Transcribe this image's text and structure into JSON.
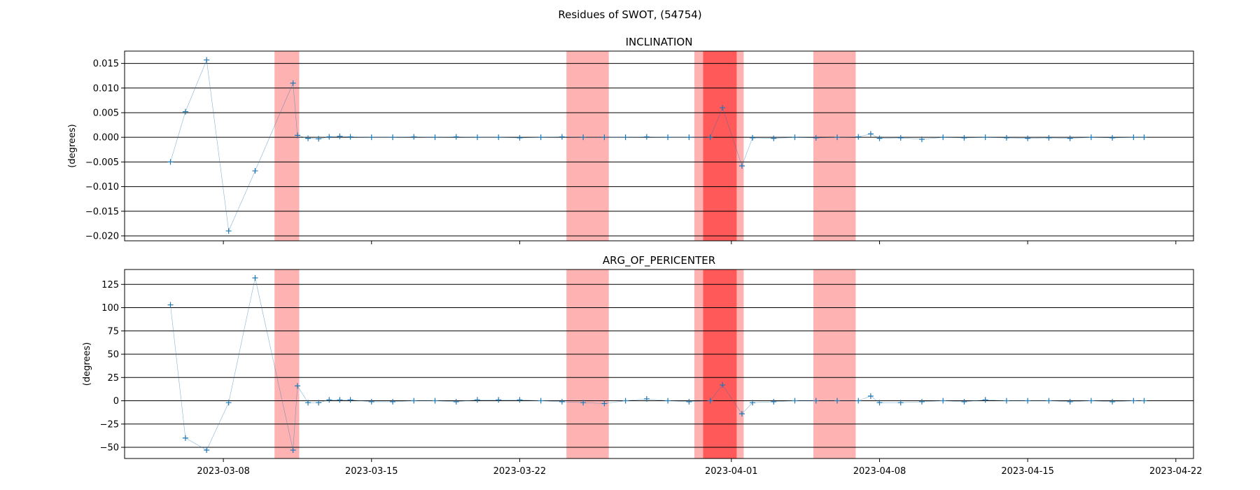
{
  "figure": {
    "title": "Residues of SWOT, (54754)"
  },
  "chart_data": [
    {
      "type": "line",
      "title": "INCLINATION",
      "xlabel": "",
      "ylabel": "(degrees)",
      "xlim": [
        "2023-03-03T08:00",
        "2023-04-22T20:00"
      ],
      "ylim": [
        -0.021,
        0.0175
      ],
      "yticks": [
        0.015,
        0.01,
        0.005,
        0.0,
        -0.005,
        -0.01,
        -0.015,
        -0.02
      ],
      "ytick_labels": [
        "0.015",
        "0.010",
        "0.005",
        "0.000",
        "−0.005",
        "−0.010",
        "−0.015",
        "−0.020"
      ],
      "xticks": [
        "2023-03-08",
        "2023-03-15",
        "2023-03-22",
        "2023-04-01",
        "2023-04-08",
        "2023-04-15",
        "2023-04-22"
      ],
      "grid": "horizontal",
      "marker": "+",
      "color": "#1f77b4",
      "series": [
        {
          "points": [
            [
              "2023-03-05T12:00",
              -0.005
            ],
            [
              "2023-03-06T05:00",
              0.0052
            ],
            [
              "2023-03-07T05:00",
              0.0157
            ],
            [
              "2023-03-08T06:00",
              -0.019
            ],
            [
              "2023-03-09T12:00",
              -0.0068
            ],
            [
              "2023-03-11T07:00",
              0.011
            ],
            [
              "2023-03-11T12:00",
              0.0004
            ],
            [
              "2023-03-12T00:00",
              -0.0002
            ],
            [
              "2023-03-12T12:00",
              -0.0003
            ],
            [
              "2023-03-13T00:00",
              0.0001
            ],
            [
              "2023-03-13T12:00",
              0.0002
            ],
            [
              "2023-03-14T00:00",
              0.0001
            ],
            [
              "2023-03-15T00:00",
              0.0
            ],
            [
              "2023-03-16T00:00",
              0.0
            ],
            [
              "2023-03-17T00:00",
              0.0001
            ],
            [
              "2023-03-18T00:00",
              0.0
            ],
            [
              "2023-03-19T00:00",
              0.0001
            ],
            [
              "2023-03-20T00:00",
              0.0
            ],
            [
              "2023-03-21T00:00",
              0.0
            ],
            [
              "2023-03-22T00:00",
              -0.0001
            ],
            [
              "2023-03-23T00:00",
              0.0
            ],
            [
              "2023-03-24T00:00",
              0.0001
            ],
            [
              "2023-03-25T00:00",
              0.0
            ],
            [
              "2023-03-26T00:00",
              0.0
            ],
            [
              "2023-03-27T00:00",
              0.0
            ],
            [
              "2023-03-28T00:00",
              0.0001
            ],
            [
              "2023-03-29T00:00",
              0.0
            ],
            [
              "2023-03-30T00:00",
              0.0
            ],
            [
              "2023-03-31T00:00",
              0.0
            ],
            [
              "2023-03-31T14:00",
              0.006
            ],
            [
              "2023-04-01T12:00",
              -0.0058
            ],
            [
              "2023-04-02T00:00",
              -0.0001
            ],
            [
              "2023-04-03T00:00",
              -0.0002
            ],
            [
              "2023-04-04T00:00",
              0.0
            ],
            [
              "2023-04-05T00:00",
              -0.0001
            ],
            [
              "2023-04-06T00:00",
              0.0
            ],
            [
              "2023-04-07T00:00",
              0.0001
            ],
            [
              "2023-04-07T14:00",
              0.0007
            ],
            [
              "2023-04-08T00:00",
              -0.0002
            ],
            [
              "2023-04-09T00:00",
              -0.0001
            ],
            [
              "2023-04-10T00:00",
              -0.0004
            ],
            [
              "2023-04-11T00:00",
              0.0
            ],
            [
              "2023-04-12T00:00",
              -0.0001
            ],
            [
              "2023-04-13T00:00",
              0.0
            ],
            [
              "2023-04-14T00:00",
              -0.0001
            ],
            [
              "2023-04-15T00:00",
              -0.0002
            ],
            [
              "2023-04-16T00:00",
              -0.0001
            ],
            [
              "2023-04-17T00:00",
              -0.0002
            ],
            [
              "2023-04-18T00:00",
              0.0
            ],
            [
              "2023-04-19T00:00",
              -0.0001
            ],
            [
              "2023-04-20T00:00",
              0.0
            ],
            [
              "2023-04-20T12:00",
              0.0
            ]
          ]
        }
      ],
      "highlighted_ranges": [
        {
          "start": "2023-03-10T10:00",
          "end": "2023-03-11T14:00",
          "shade": "light"
        },
        {
          "start": "2023-03-24T05:00",
          "end": "2023-03-26T05:00",
          "shade": "light"
        },
        {
          "start": "2023-03-30T06:00",
          "end": "2023-04-01T14:00",
          "shade": "light"
        },
        {
          "start": "2023-03-30T16:00",
          "end": "2023-04-01T06:00",
          "shade": "dark"
        },
        {
          "start": "2023-04-04T21:00",
          "end": "2023-04-06T21:00",
          "shade": "light"
        }
      ]
    },
    {
      "type": "line",
      "title": "ARG_OF_PERICENTER",
      "xlabel": "",
      "ylabel": "(degrees)",
      "xlim": [
        "2023-03-03T08:00",
        "2023-04-22T20:00"
      ],
      "ylim": [
        -62,
        141
      ],
      "yticks": [
        125,
        100,
        75,
        50,
        25,
        0,
        -25,
        -50
      ],
      "ytick_labels": [
        "125",
        "100",
        "75",
        "50",
        "25",
        "0",
        "−25",
        "−50"
      ],
      "xticks": [
        "2023-03-08",
        "2023-03-15",
        "2023-03-22",
        "2023-04-01",
        "2023-04-08",
        "2023-04-15",
        "2023-04-22"
      ],
      "grid": "horizontal",
      "marker": "+",
      "color": "#1f77b4",
      "series": [
        {
          "points": [
            [
              "2023-03-05T12:00",
              103
            ],
            [
              "2023-03-06T05:00",
              -40
            ],
            [
              "2023-03-07T05:00",
              -53
            ],
            [
              "2023-03-08T06:00",
              -2
            ],
            [
              "2023-03-09T12:00",
              132
            ],
            [
              "2023-03-11T07:00",
              -53
            ],
            [
              "2023-03-11T12:00",
              16
            ],
            [
              "2023-03-12T00:00",
              -2
            ],
            [
              "2023-03-12T12:00",
              -2
            ],
            [
              "2023-03-13T00:00",
              1
            ],
            [
              "2023-03-13T12:00",
              1
            ],
            [
              "2023-03-14T00:00",
              1
            ],
            [
              "2023-03-15T00:00",
              -1
            ],
            [
              "2023-03-16T00:00",
              -1
            ],
            [
              "2023-03-17T00:00",
              0
            ],
            [
              "2023-03-18T00:00",
              0
            ],
            [
              "2023-03-19T00:00",
              -1
            ],
            [
              "2023-03-20T00:00",
              1
            ],
            [
              "2023-03-21T00:00",
              1
            ],
            [
              "2023-03-22T00:00",
              1
            ],
            [
              "2023-03-23T00:00",
              0
            ],
            [
              "2023-03-24T00:00",
              -1
            ],
            [
              "2023-03-25T00:00",
              -2
            ],
            [
              "2023-03-26T00:00",
              -3
            ],
            [
              "2023-03-27T00:00",
              0
            ],
            [
              "2023-03-28T00:00",
              2
            ],
            [
              "2023-03-29T00:00",
              0
            ],
            [
              "2023-03-30T00:00",
              -1
            ],
            [
              "2023-03-31T00:00",
              0
            ],
            [
              "2023-03-31T14:00",
              17
            ],
            [
              "2023-04-01T12:00",
              -14
            ],
            [
              "2023-04-02T00:00",
              -2
            ],
            [
              "2023-04-03T00:00",
              -1
            ],
            [
              "2023-04-04T00:00",
              0
            ],
            [
              "2023-04-05T00:00",
              0
            ],
            [
              "2023-04-06T00:00",
              0
            ],
            [
              "2023-04-07T00:00",
              0
            ],
            [
              "2023-04-07T14:00",
              5
            ],
            [
              "2023-04-08T00:00",
              -2
            ],
            [
              "2023-04-09T00:00",
              -2
            ],
            [
              "2023-04-10T00:00",
              -1
            ],
            [
              "2023-04-11T00:00",
              0
            ],
            [
              "2023-04-12T00:00",
              -1
            ],
            [
              "2023-04-13T00:00",
              1
            ],
            [
              "2023-04-14T00:00",
              0
            ],
            [
              "2023-04-15T00:00",
              0
            ],
            [
              "2023-04-16T00:00",
              0
            ],
            [
              "2023-04-17T00:00",
              -1
            ],
            [
              "2023-04-18T00:00",
              0
            ],
            [
              "2023-04-19T00:00",
              -1
            ],
            [
              "2023-04-20T00:00",
              0
            ],
            [
              "2023-04-20T12:00",
              0
            ]
          ]
        }
      ],
      "highlighted_ranges": [
        {
          "start": "2023-03-10T10:00",
          "end": "2023-03-11T14:00",
          "shade": "light"
        },
        {
          "start": "2023-03-24T05:00",
          "end": "2023-03-26T05:00",
          "shade": "light"
        },
        {
          "start": "2023-03-30T06:00",
          "end": "2023-04-01T14:00",
          "shade": "light"
        },
        {
          "start": "2023-03-30T16:00",
          "end": "2023-04-01T06:00",
          "shade": "dark"
        },
        {
          "start": "2023-04-04T21:00",
          "end": "2023-04-06T21:00",
          "shade": "light"
        }
      ]
    }
  ],
  "colors": {
    "series": "#1f77b4",
    "span_light": "#ff0000",
    "span_dark": "#ff0000",
    "grid": "#000000"
  }
}
